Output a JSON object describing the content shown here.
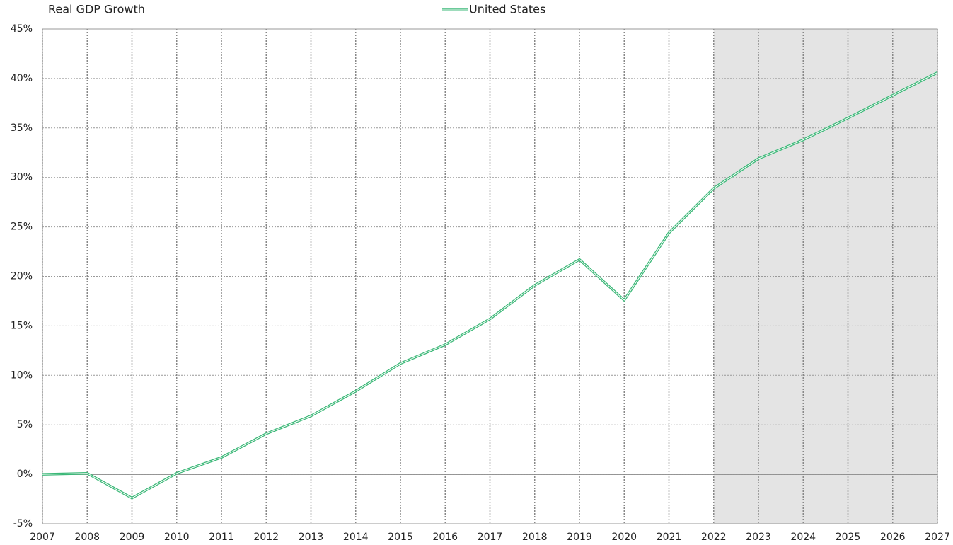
{
  "chart_data": {
    "type": "line",
    "title": "Real GDP Growth",
    "x": [
      2007,
      2008,
      2009,
      2010,
      2011,
      2012,
      2013,
      2014,
      2015,
      2016,
      2017,
      2018,
      2019,
      2020,
      2021,
      2022,
      2023,
      2024,
      2025,
      2026,
      2027
    ],
    "series": [
      {
        "name": "United States",
        "color": "#3cb878",
        "values": [
          0,
          0.1,
          -2.4,
          0.1,
          1.7,
          4.1,
          5.9,
          8.4,
          11.2,
          13.1,
          15.7,
          19.1,
          21.7,
          17.6,
          24.4,
          28.9,
          31.9,
          33.8,
          36.0,
          38.3,
          40.6
        ]
      }
    ],
    "xlim": [
      2007,
      2027
    ],
    "xticks": [
      2007,
      2008,
      2009,
      2010,
      2011,
      2012,
      2013,
      2014,
      2015,
      2016,
      2017,
      2018,
      2019,
      2020,
      2021,
      2022,
      2023,
      2024,
      2025,
      2026,
      2027
    ],
    "ylim": [
      -5,
      45
    ],
    "yticks": [
      {
        "value": -5,
        "label": "-5%"
      },
      {
        "value": 0,
        "label": "0%"
      },
      {
        "value": 5,
        "label": "5%"
      },
      {
        "value": 10,
        "label": "10%"
      },
      {
        "value": 15,
        "label": "15%"
      },
      {
        "value": 20,
        "label": "20%"
      },
      {
        "value": 25,
        "label": "25%"
      },
      {
        "value": 30,
        "label": "30%"
      },
      {
        "value": 35,
        "label": "35%"
      },
      {
        "value": 40,
        "label": "40%"
      },
      {
        "value": 45,
        "label": "45%"
      }
    ],
    "shade_xrange": [
      2022,
      2027
    ],
    "grid": true,
    "legend": "top"
  }
}
